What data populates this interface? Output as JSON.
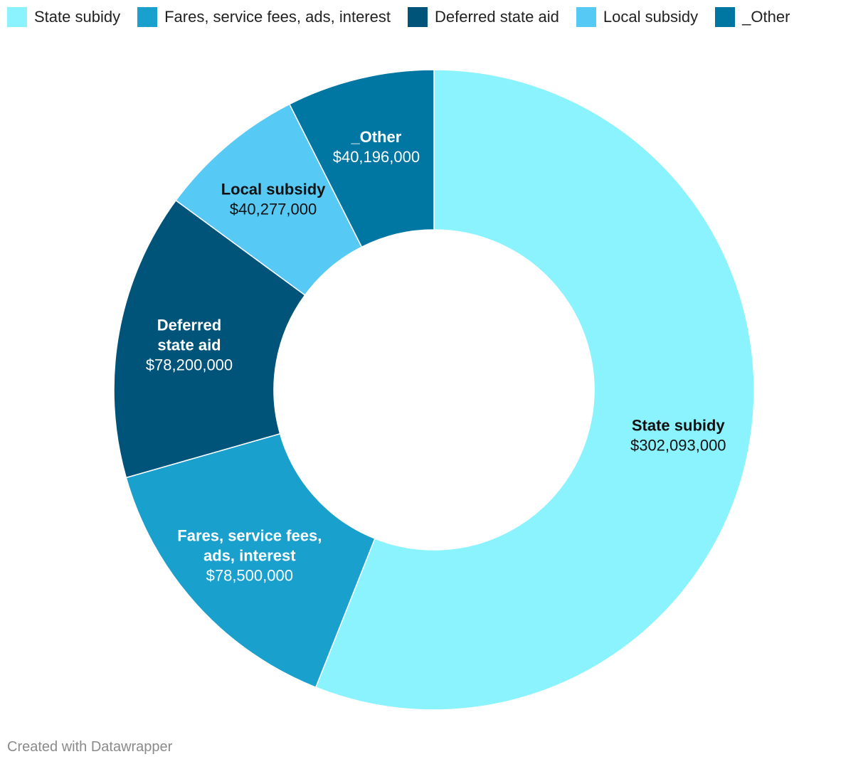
{
  "chart_data": {
    "type": "pie",
    "variant": "donut",
    "title": "",
    "slices": [
      {
        "label": "State subidy",
        "value": 302093000,
        "value_label": "$302,093,000",
        "color": "#8af3fd",
        "label_lines": [
          "State subidy"
        ],
        "text_color": "#111111"
      },
      {
        "label": "Fares, service fees, ads, interest",
        "value": 78500000,
        "value_label": "$78,500,000",
        "color": "#19a0cc",
        "label_lines": [
          "Fares, service fees,",
          "ads, interest"
        ],
        "text_color": "#ffffff"
      },
      {
        "label": "Deferred state aid",
        "value": 78200000,
        "value_label": "$78,200,000",
        "color": "#005379",
        "label_lines": [
          "Deferred",
          "state aid"
        ],
        "text_color": "#ffffff"
      },
      {
        "label": "Local subsidy",
        "value": 40277000,
        "value_label": "$40,277,000",
        "color": "#57c9f5",
        "label_lines": [
          "Local subsidy"
        ],
        "text_color": "#111111"
      },
      {
        "label": "_Other",
        "value": 40196000,
        "value_label": "$40,196,000",
        "color": "#0076a3",
        "label_lines": [
          "_Other"
        ],
        "text_color": "#ffffff"
      }
    ],
    "legend": {
      "placement": "top-left",
      "items": [
        {
          "label": "State subidy",
          "color": "#8af3fd"
        },
        {
          "label": "Fares, service fees, ads, interest",
          "color": "#19a0cc"
        },
        {
          "label": "Deferred state aid",
          "color": "#005379"
        },
        {
          "label": "Local subsidy",
          "color": "#57c9f5"
        },
        {
          "label": "_Other",
          "color": "#0076a3"
        }
      ]
    }
  },
  "footer": {
    "credit": "Created with Datawrapper"
  }
}
